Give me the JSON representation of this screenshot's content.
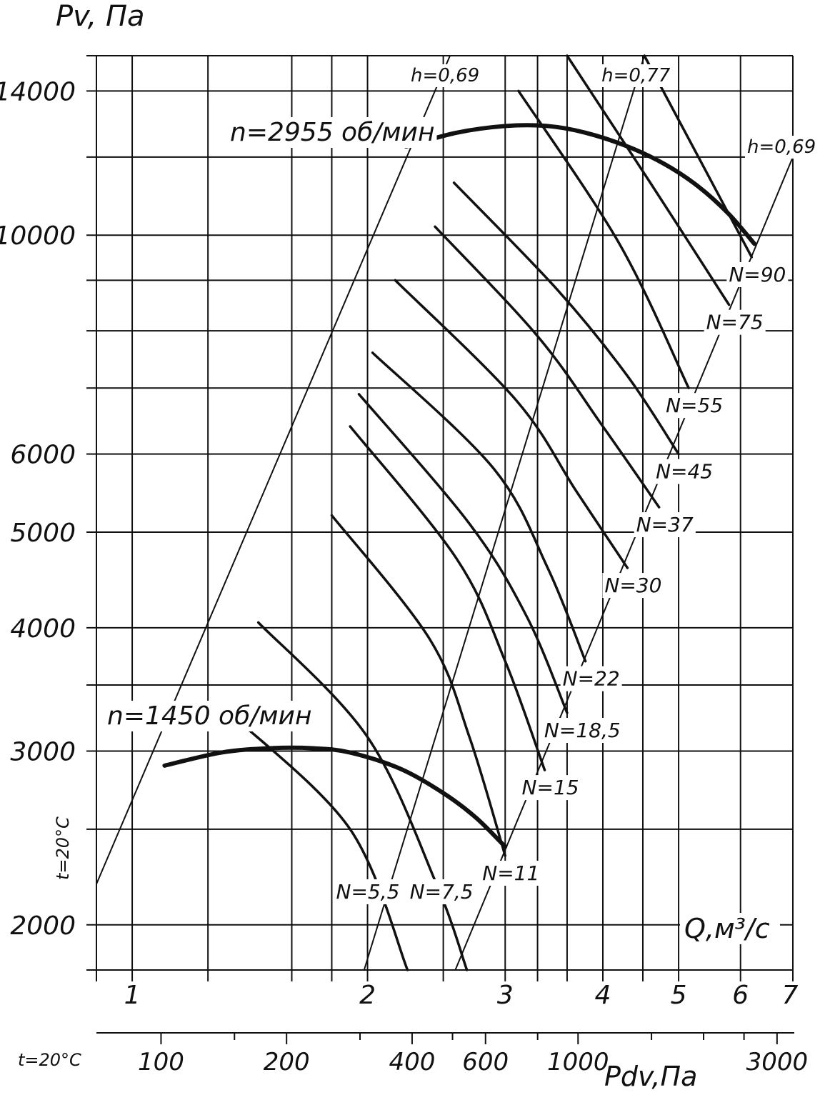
{
  "chart_data": {
    "type": "line",
    "title": "",
    "ylabel": "Pv, Па",
    "xlabel": "Q,м³/с",
    "x2label": "Pdv,Па",
    "side_label": "t=20°C",
    "x2_side_label": "t=20°C",
    "xscale": "log",
    "yscale": "log",
    "xlim": [
      0.9,
      7
    ],
    "ylim": [
      1800,
      15200
    ],
    "x_ticks": [
      1,
      2,
      3,
      4,
      5,
      6,
      7
    ],
    "x_tick_labels": [
      "1",
      "2",
      "3",
      "4",
      "5",
      "6",
      "7"
    ],
    "y_ticks": [
      2000,
      3000,
      4000,
      5000,
      6000,
      10000,
      14000
    ],
    "y_tick_labels": [
      "2000",
      "3000",
      "4000",
      "5000",
      "6000",
      "10000",
      "14000"
    ],
    "x_gridlines": [
      0.9,
      1,
      1.25,
      1.6,
      1.8,
      2,
      2.5,
      3,
      3.3,
      3.6,
      4,
      4.5,
      5,
      6,
      7
    ],
    "y_gridlines": [
      1800,
      2000,
      2500,
      3000,
      3500,
      4000,
      5000,
      6000,
      7000,
      8000,
      9000,
      10000,
      12000,
      14000,
      15200
    ],
    "dynamic_pressure_ticks": [
      100,
      200,
      400,
      600,
      1000,
      3000
    ],
    "dynamic_pressure_tick_labels": [
      "100",
      "200",
      "400",
      "600",
      "1000",
      "3000"
    ],
    "dynamic_pressure_minor_ticks": [
      150,
      300,
      500,
      800,
      1500,
      2000,
      2500
    ],
    "grid": true,
    "series": [
      {
        "name": "n=2955 об/мин",
        "kind": "speed",
        "x": [
          2.24,
          2.6,
          3.0,
          3.4,
          3.8,
          4.3,
          4.8,
          5.3,
          5.8,
          6.25
        ],
        "y": [
          12300,
          12700,
          12900,
          12900,
          12700,
          12300,
          11800,
          11200,
          10500,
          9800
        ]
      },
      {
        "name": "n=1450 об/мин",
        "kind": "speed",
        "x": [
          1.1,
          1.3,
          1.5,
          1.7,
          1.9,
          2.2,
          2.5,
          2.75,
          3.0
        ],
        "y": [
          2900,
          2990,
          3020,
          3020,
          2990,
          2880,
          2720,
          2570,
          2400
        ]
      },
      {
        "name": "h=0,69",
        "kind": "efficiency",
        "x": [
          0.9,
          2.55
        ],
        "y": [
          2200,
          15200
        ]
      },
      {
        "name": "h=0,77",
        "kind": "efficiency",
        "x": [
          1.98,
          4.52
        ],
        "y": [
          1800,
          15200
        ]
      },
      {
        "name": "h=0,69",
        "kind": "efficiency",
        "x": [
          2.59,
          7.0
        ],
        "y": [
          1800,
          12000
        ]
      },
      {
        "name": "N=5,5",
        "kind": "power",
        "x": [
          1.35,
          1.9,
          2.25
        ],
        "y": [
          3250,
          2500,
          1800
        ]
      },
      {
        "name": "N=7,5",
        "kind": "power",
        "x": [
          1.45,
          2.0,
          2.45,
          2.68
        ],
        "y": [
          4050,
          3100,
          2200,
          1800
        ]
      },
      {
        "name": "N=11",
        "kind": "power",
        "x": [
          1.8,
          2.4,
          2.7,
          3.0
        ],
        "y": [
          5200,
          3900,
          3100,
          2350
        ]
      },
      {
        "name": "N=15",
        "kind": "power",
        "x": [
          1.9,
          2.6,
          3.0,
          3.37
        ],
        "y": [
          6400,
          4700,
          3700,
          2870
        ]
      },
      {
        "name": "N=18,5",
        "kind": "power",
        "x": [
          1.95,
          2.7,
          3.2,
          3.6
        ],
        "y": [
          6900,
          5100,
          4100,
          3280
        ]
      },
      {
        "name": "N=22",
        "kind": "power",
        "x": [
          2.03,
          2.9,
          3.4,
          3.8
        ],
        "y": [
          7600,
          5800,
          4600,
          3700
        ]
      },
      {
        "name": "N=30",
        "kind": "power",
        "x": [
          2.17,
          3.1,
          3.7,
          4.3
        ],
        "y": [
          9000,
          6800,
          5500,
          4600
        ]
      },
      {
        "name": "N=37",
        "kind": "power",
        "x": [
          2.44,
          3.3,
          4.0,
          4.72
        ],
        "y": [
          10200,
          7900,
          6400,
          5300
        ]
      },
      {
        "name": "N=45",
        "kind": "power",
        "x": [
          2.58,
          3.5,
          4.3,
          5.0
        ],
        "y": [
          11300,
          8800,
          7200,
          6000
        ]
      },
      {
        "name": "N=55",
        "kind": "power",
        "x": [
          3.12,
          4.2,
          5.15
        ],
        "y": [
          14000,
          9800,
          7000
        ]
      },
      {
        "name": "N=75",
        "kind": "power",
        "x": [
          3.6,
          4.6,
          5.8
        ],
        "y": [
          15200,
          11300,
          8500
        ]
      },
      {
        "name": "N=90",
        "kind": "power",
        "x": [
          4.52,
          5.3,
          6.2
        ],
        "y": [
          15200,
          12000,
          9500
        ]
      }
    ]
  }
}
